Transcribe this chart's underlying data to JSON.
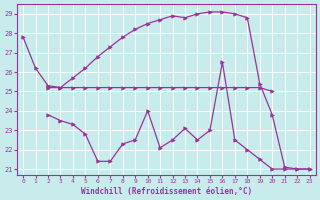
{
  "xlabel": "Windchill (Refroidissement éolien,°C)",
  "background_color": "#c8ecec",
  "grid_color": "#b0d0d0",
  "line_color": "#993399",
  "xlim": [
    -0.5,
    23.5
  ],
  "ylim": [
    20.7,
    29.5
  ],
  "yticks": [
    21,
    22,
    23,
    24,
    25,
    26,
    27,
    28,
    29
  ],
  "xticks": [
    0,
    1,
    2,
    3,
    4,
    5,
    6,
    7,
    8,
    9,
    10,
    11,
    12,
    13,
    14,
    15,
    16,
    17,
    18,
    19,
    20,
    21,
    22,
    23
  ],
  "series": [
    {
      "x": [
        0,
        1,
        2,
        3,
        4,
        5,
        6,
        7,
        8,
        9,
        10,
        11,
        12,
        13,
        14,
        15,
        16,
        17,
        18,
        19,
        20,
        21,
        22,
        23
      ],
      "y": [
        27.8,
        26.2,
        25.3,
        25.2,
        25.7,
        26.2,
        26.8,
        27.3,
        27.8,
        28.2,
        28.5,
        28.7,
        28.9,
        28.8,
        29.0,
        29.1,
        29.1,
        29.0,
        28.8,
        25.4,
        23.8,
        21.1,
        21.0,
        21.0
      ]
    },
    {
      "x": [
        2,
        3,
        4,
        5,
        6,
        7,
        8,
        9,
        10,
        11,
        12,
        13,
        14,
        15,
        16,
        17,
        18,
        19,
        20
      ],
      "y": [
        25.2,
        25.2,
        25.2,
        25.2,
        25.2,
        25.2,
        25.2,
        25.2,
        25.2,
        25.2,
        25.2,
        25.2,
        25.2,
        25.2,
        25.2,
        25.2,
        25.2,
        25.2,
        25.0
      ]
    },
    {
      "x": [
        2,
        3,
        4,
        5,
        6,
        7,
        8,
        9,
        10,
        11,
        12,
        13,
        14,
        15,
        16,
        17,
        18,
        19,
        20,
        21,
        22,
        23
      ],
      "y": [
        23.8,
        23.5,
        23.3,
        22.8,
        21.4,
        21.4,
        22.3,
        22.5,
        24.0,
        22.1,
        22.5,
        23.1,
        22.5,
        23.0,
        26.5,
        22.5,
        22.0,
        21.5,
        21.0,
        21.0,
        21.0,
        21.0
      ]
    }
  ]
}
